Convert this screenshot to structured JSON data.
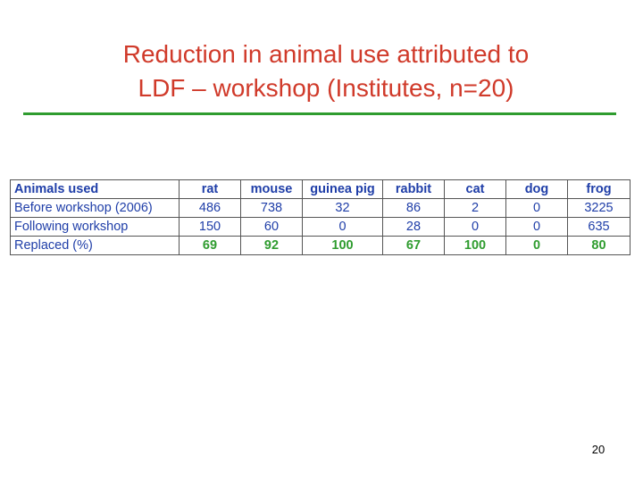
{
  "slide": {
    "title_line1": "Reduction in animal use attributed to",
    "title_line2": "LDF – workshop (Institutes, n=20)",
    "page_number": "20"
  },
  "table": {
    "corner_header": "Animals used",
    "columns": [
      "rat",
      "mouse",
      "guinea pig",
      "rabbit",
      "cat",
      "dog",
      "frog"
    ],
    "rows": [
      {
        "label": "Before workshop (2006)",
        "values": [
          "486",
          "738",
          "32",
          "86",
          "2",
          "0",
          "3225"
        ]
      },
      {
        "label": "Following workshop",
        "values": [
          "150",
          "60",
          "0",
          "28",
          "0",
          "0",
          "635"
        ]
      },
      {
        "label": "Replaced (%)",
        "values": [
          "69",
          "92",
          "100",
          "67",
          "100",
          "0",
          "80"
        ]
      }
    ]
  },
  "colors": {
    "title": "#d03a2a",
    "rule": "#2f9c2f",
    "table_text": "#1f3ea8",
    "percent_text": "#2f9c2f"
  }
}
